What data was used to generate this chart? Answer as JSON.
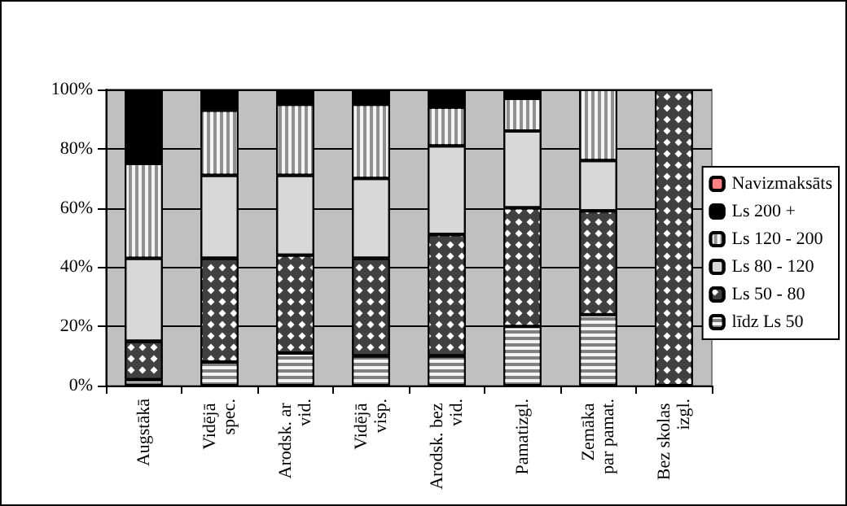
{
  "chart_data": {
    "type": "bar",
    "stacked": true,
    "categories": [
      "Augstākā",
      "Vidējā spec.",
      "Arodsk. ar vid.",
      "Vidējā visp.",
      "Arodsk. bez vid.",
      "Pamatizgl.",
      "Zemāka par pamat.",
      "Bez skolas izgl."
    ],
    "series": [
      {
        "name": "līdz Ls 50",
        "color": "#808080",
        "values": [
          2,
          8,
          11,
          10,
          10,
          20,
          24,
          0
        ]
      },
      {
        "name": "Ls 50 - 80",
        "color": "#404040",
        "values": [
          13,
          35,
          33,
          33,
          41,
          40,
          35,
          100
        ]
      },
      {
        "name": "Ls 80 - 120",
        "color": "#d8d8d8",
        "values": [
          28,
          28,
          27,
          27,
          30,
          26,
          17,
          0
        ]
      },
      {
        "name": "Ls 120 - 200",
        "color": "#909090",
        "values": [
          32,
          22,
          24,
          25,
          13,
          11,
          24,
          0
        ]
      },
      {
        "name": "Ls 200 +",
        "color": "#000000",
        "values": [
          25,
          7,
          5,
          5,
          6,
          3,
          0,
          0
        ]
      },
      {
        "name": "Navizmaksāts",
        "color": "#ff8080",
        "values": [
          0,
          0,
          0,
          0,
          0,
          0,
          0,
          0
        ]
      }
    ],
    "ylim": [
      0,
      100
    ],
    "yticks": [
      {
        "value": 0,
        "label": "0%"
      },
      {
        "value": 20,
        "label": "20%"
      },
      {
        "value": 40,
        "label": "40%"
      },
      {
        "value": 60,
        "label": "60%"
      },
      {
        "value": 80,
        "label": "80%"
      },
      {
        "value": 100,
        "label": "100%"
      }
    ],
    "grid": "y",
    "legend": "right"
  }
}
